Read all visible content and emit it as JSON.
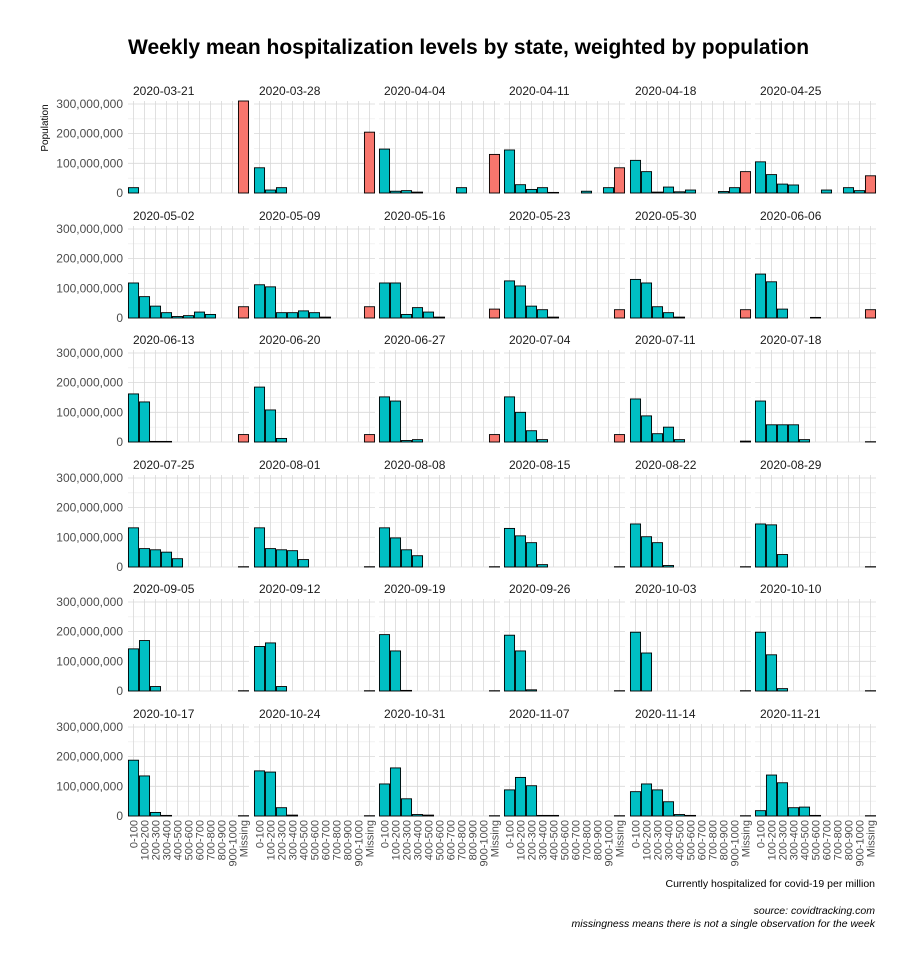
{
  "chart_data": {
    "type": "bar",
    "title": "Weekly mean hospitalization levels by state, weighted by population",
    "xlabel": "Currently hospitalized for covid-19 per million",
    "ylabel": "Population",
    "ylim": [
      0,
      310000000
    ],
    "yticks": [
      0,
      100000000,
      200000000,
      300000000
    ],
    "ytick_labels": [
      "0",
      "100,000,000",
      "200,000,000",
      "300,000,000"
    ],
    "categories": [
      "0-100",
      "100-200",
      "200-300",
      "300-400",
      "400-500",
      "500-600",
      "600-700",
      "700-800",
      "800-900",
      "900-1000",
      "Missing"
    ],
    "colors": {
      "observed": "#00BFC4",
      "missing": "#F8766D",
      "grid": "#d9d9d9"
    },
    "facet_layout": {
      "columns": 6,
      "rows": 6
    },
    "caption": [
      "source: covidtracking.com",
      "missingness means there is not a single observation for the week"
    ],
    "panels": [
      {
        "week": "2020-03-21",
        "values": [
          18000000,
          0,
          0,
          0,
          0,
          0,
          0,
          0,
          0,
          0,
          310000000
        ]
      },
      {
        "week": "2020-03-28",
        "values": [
          85000000,
          10000000,
          18000000,
          0,
          0,
          0,
          0,
          0,
          0,
          0,
          205000000
        ]
      },
      {
        "week": "2020-04-04",
        "values": [
          148000000,
          6000000,
          8000000,
          3000000,
          0,
          0,
          0,
          18000000,
          0,
          0,
          130000000
        ]
      },
      {
        "week": "2020-04-11",
        "values": [
          145000000,
          28000000,
          12000000,
          18000000,
          2000000,
          0,
          0,
          6000000,
          0,
          18000000,
          85000000
        ]
      },
      {
        "week": "2020-04-18",
        "values": [
          110000000,
          72000000,
          3000000,
          20000000,
          4000000,
          10000000,
          0,
          0,
          5000000,
          18000000,
          72000000
        ]
      },
      {
        "week": "2020-04-25",
        "values": [
          105000000,
          62000000,
          30000000,
          27000000,
          0,
          0,
          10000000,
          0,
          18000000,
          8000000,
          58000000
        ]
      },
      {
        "week": "2020-05-02",
        "values": [
          118000000,
          72000000,
          40000000,
          18000000,
          5000000,
          8000000,
          20000000,
          12000000,
          0,
          0,
          38000000
        ]
      },
      {
        "week": "2020-05-09",
        "values": [
          112000000,
          105000000,
          18000000,
          18000000,
          24000000,
          18000000,
          3000000,
          0,
          0,
          0,
          38000000
        ]
      },
      {
        "week": "2020-05-16",
        "values": [
          118000000,
          118000000,
          12000000,
          35000000,
          20000000,
          3000000,
          0,
          0,
          0,
          0,
          30000000
        ]
      },
      {
        "week": "2020-05-23",
        "values": [
          125000000,
          108000000,
          40000000,
          28000000,
          3000000,
          0,
          0,
          0,
          0,
          0,
          28000000
        ]
      },
      {
        "week": "2020-05-30",
        "values": [
          130000000,
          118000000,
          38000000,
          18000000,
          3000000,
          0,
          0,
          0,
          0,
          0,
          28000000
        ]
      },
      {
        "week": "2020-06-06",
        "values": [
          148000000,
          122000000,
          30000000,
          0,
          0,
          2000000,
          0,
          0,
          0,
          0,
          28000000
        ]
      },
      {
        "week": "2020-06-13",
        "values": [
          162000000,
          135000000,
          2000000,
          2000000,
          0,
          0,
          0,
          0,
          0,
          0,
          25000000
        ]
      },
      {
        "week": "2020-06-20",
        "values": [
          185000000,
          108000000,
          12000000,
          0,
          0,
          0,
          0,
          0,
          0,
          0,
          25000000
        ]
      },
      {
        "week": "2020-06-27",
        "values": [
          152000000,
          138000000,
          5000000,
          8000000,
          0,
          0,
          0,
          0,
          0,
          0,
          25000000
        ]
      },
      {
        "week": "2020-07-04",
        "values": [
          152000000,
          100000000,
          38000000,
          8000000,
          0,
          0,
          0,
          0,
          0,
          0,
          25000000
        ]
      },
      {
        "week": "2020-07-11",
        "values": [
          145000000,
          88000000,
          28000000,
          50000000,
          8000000,
          0,
          0,
          0,
          0,
          0,
          3000000
        ]
      },
      {
        "week": "2020-07-18",
        "values": [
          138000000,
          58000000,
          58000000,
          58000000,
          8000000,
          0,
          0,
          0,
          0,
          0,
          1000000
        ]
      },
      {
        "week": "2020-07-25",
        "values": [
          132000000,
          62000000,
          58000000,
          50000000,
          28000000,
          0,
          0,
          0,
          0,
          0,
          1000000
        ]
      },
      {
        "week": "2020-08-01",
        "values": [
          132000000,
          62000000,
          58000000,
          55000000,
          25000000,
          0,
          0,
          0,
          0,
          0,
          1000000
        ]
      },
      {
        "week": "2020-08-08",
        "values": [
          132000000,
          98000000,
          58000000,
          38000000,
          0,
          0,
          0,
          0,
          0,
          0,
          1000000
        ]
      },
      {
        "week": "2020-08-15",
        "values": [
          130000000,
          105000000,
          82000000,
          8000000,
          0,
          0,
          0,
          0,
          0,
          0,
          1000000
        ]
      },
      {
        "week": "2020-08-22",
        "values": [
          145000000,
          102000000,
          82000000,
          5000000,
          0,
          0,
          0,
          0,
          0,
          0,
          1000000
        ]
      },
      {
        "week": "2020-08-29",
        "values": [
          145000000,
          142000000,
          42000000,
          0,
          0,
          0,
          0,
          0,
          0,
          0,
          1000000
        ]
      },
      {
        "week": "2020-09-05",
        "values": [
          142000000,
          170000000,
          15000000,
          0,
          0,
          0,
          0,
          0,
          0,
          0,
          1000000
        ]
      },
      {
        "week": "2020-09-12",
        "values": [
          150000000,
          162000000,
          15000000,
          0,
          0,
          0,
          0,
          0,
          0,
          0,
          1000000
        ]
      },
      {
        "week": "2020-09-19",
        "values": [
          190000000,
          135000000,
          2000000,
          0,
          0,
          0,
          0,
          0,
          0,
          0,
          1000000
        ]
      },
      {
        "week": "2020-09-26",
        "values": [
          188000000,
          135000000,
          4000000,
          0,
          0,
          0,
          0,
          0,
          0,
          0,
          1000000
        ]
      },
      {
        "week": "2020-10-03",
        "values": [
          198000000,
          128000000,
          0,
          0,
          0,
          0,
          0,
          0,
          0,
          0,
          1000000
        ]
      },
      {
        "week": "2020-10-10",
        "values": [
          198000000,
          122000000,
          8000000,
          0,
          0,
          0,
          0,
          0,
          0,
          0,
          1000000
        ]
      },
      {
        "week": "2020-10-17",
        "values": [
          188000000,
          135000000,
          12000000,
          2000000,
          0,
          0,
          0,
          0,
          0,
          0,
          1000000
        ]
      },
      {
        "week": "2020-10-24",
        "values": [
          152000000,
          148000000,
          28000000,
          3000000,
          0,
          0,
          0,
          0,
          0,
          0,
          1000000
        ]
      },
      {
        "week": "2020-10-31",
        "values": [
          108000000,
          162000000,
          58000000,
          5000000,
          3000000,
          0,
          0,
          0,
          0,
          0,
          1000000
        ]
      },
      {
        "week": "2020-11-07",
        "values": [
          88000000,
          130000000,
          102000000,
          2000000,
          2000000,
          0,
          0,
          0,
          0,
          0,
          1000000
        ]
      },
      {
        "week": "2020-11-14",
        "values": [
          82000000,
          108000000,
          88000000,
          48000000,
          5000000,
          2000000,
          0,
          0,
          0,
          0,
          1000000
        ]
      },
      {
        "week": "2020-11-21",
        "values": [
          18000000,
          138000000,
          112000000,
          28000000,
          30000000,
          2000000,
          0,
          0,
          0,
          0,
          1000000
        ]
      }
    ]
  }
}
